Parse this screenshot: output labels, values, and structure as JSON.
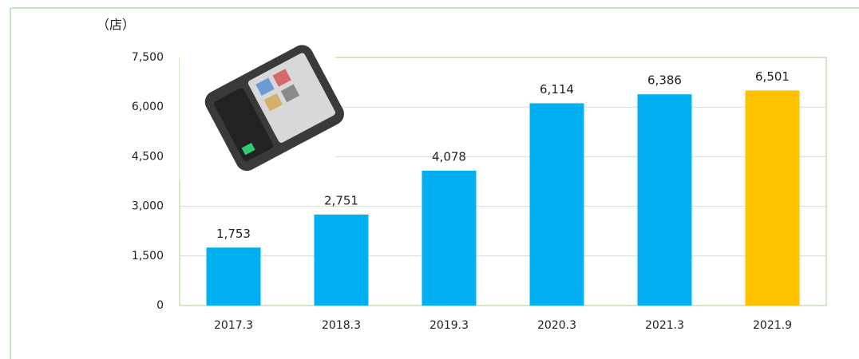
{
  "chart_data": {
    "type": "bar",
    "y_unit": "（店）",
    "categories": [
      "2017.3",
      "2018.3",
      "2019.3",
      "2020.3",
      "2021.3",
      "2021.9"
    ],
    "values": [
      1753,
      2751,
      4078,
      6114,
      6386,
      6501
    ],
    "value_labels": [
      "1,753",
      "2,751",
      "4,078",
      "6,114",
      "6,386",
      "6,501"
    ],
    "colors": [
      "#00b0f0",
      "#00b0f0",
      "#00b0f0",
      "#00b0f0",
      "#00b0f0",
      "#ffc000"
    ],
    "ylim": [
      0,
      7500
    ],
    "yticks": [
      0,
      {
        "value": 1500,
        "label": "1,500"
      },
      {
        "value": 3000,
        "label": "3,000"
      },
      {
        "value": 4500,
        "label": "4,500"
      },
      {
        "value": 6000,
        "label": "6,000"
      },
      {
        "value": 7500,
        "label": "7,500"
      }
    ],
    "grid": true
  }
}
